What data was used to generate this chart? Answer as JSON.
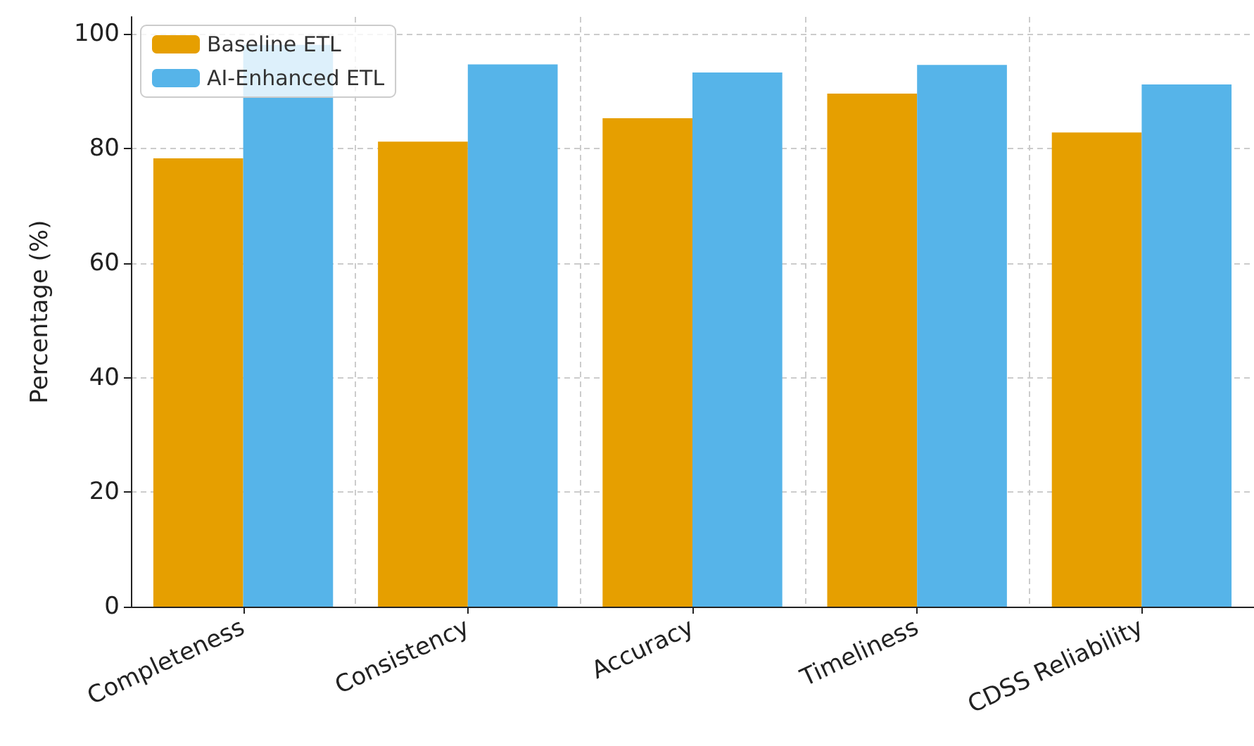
{
  "chart_data": {
    "type": "bar",
    "ylabel": "Percentage (%)",
    "categories": [
      "Completeness",
      "Consistency",
      "Accuracy",
      "Timeliness",
      "CDSS Reliability"
    ],
    "series": [
      {
        "name": "Baseline ETL",
        "color": "#e69f00",
        "values": [
          78.3,
          81.2,
          85.3,
          89.6,
          82.8
        ]
      },
      {
        "name": "AI-Enhanced ETL",
        "color": "#56b4e9",
        "values": [
          98.1,
          94.7,
          93.3,
          94.6,
          91.2
        ]
      }
    ],
    "ylim": [
      0,
      103
    ],
    "yticks": [
      0,
      20,
      40,
      60,
      80,
      100
    ],
    "grid": true,
    "legend": "top left"
  }
}
